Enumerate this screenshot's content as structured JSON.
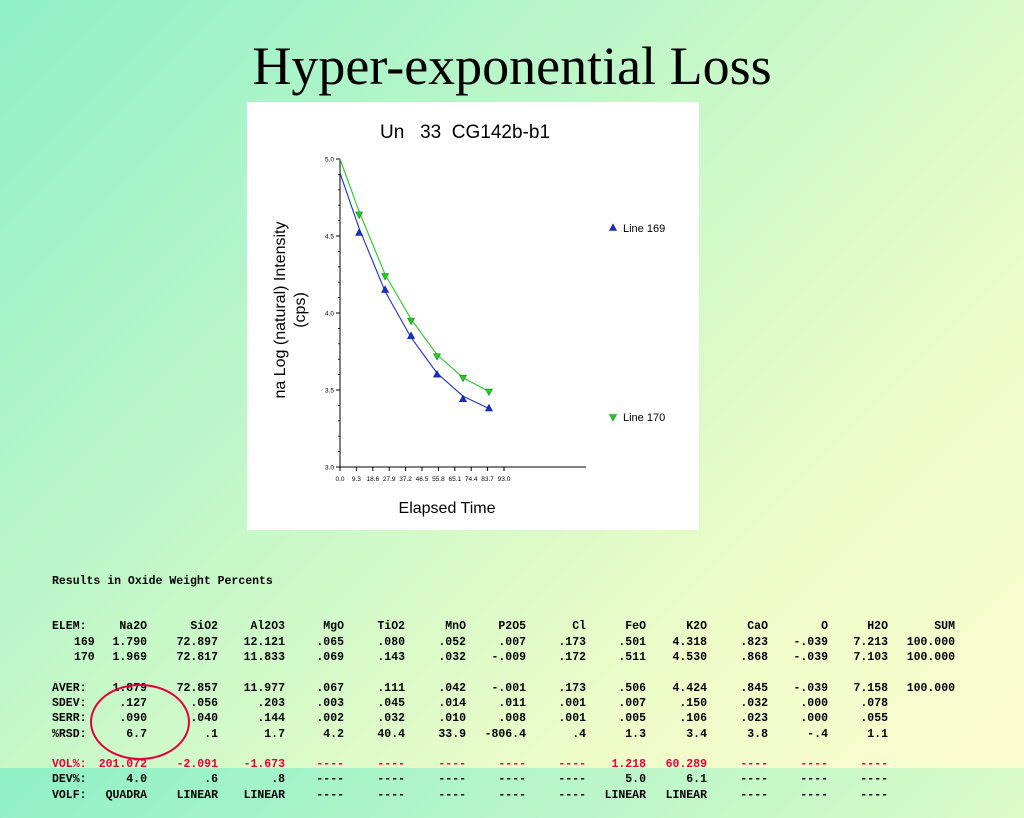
{
  "slide": {
    "title": "Hyper-exponential Loss"
  },
  "chart_data": {
    "type": "scatter",
    "title": "Un   33  CG142b-b1",
    "xlabel": "Elapsed Time",
    "ylabel_line1": "na Log (natural) Intensity",
    "ylabel_line2": "(cps)",
    "xlim": [
      0,
      93
    ],
    "ylim": [
      3.0,
      5.0
    ],
    "x_ticks": [
      "0.0",
      "9.3",
      "18.6",
      "27.9",
      "37.2",
      "46.5",
      "55.8",
      "65.1",
      "74.4",
      "83.7",
      "93.0"
    ],
    "y_ticks": [
      "3.0",
      "3.5",
      "4.0",
      "4.5",
      "5.0"
    ],
    "series": [
      {
        "name": "Line 169",
        "color": "#1a2fd0",
        "marker": "triangle-up",
        "points": [
          [
            7,
            4.52
          ],
          [
            16.5,
            4.15
          ],
          [
            26,
            3.85
          ],
          [
            35.5,
            3.6
          ],
          [
            45,
            3.44
          ],
          [
            54.5,
            3.38
          ]
        ],
        "fit": [
          [
            0,
            4.91
          ],
          [
            7,
            4.55
          ],
          [
            16.5,
            4.14
          ],
          [
            26,
            3.84
          ],
          [
            35.5,
            3.61
          ],
          [
            45,
            3.46
          ],
          [
            54.5,
            3.38
          ]
        ]
      },
      {
        "name": "Line 170",
        "color": "#22cc22",
        "marker": "triangle-down",
        "points": [
          [
            7,
            4.64
          ],
          [
            16.5,
            4.24
          ],
          [
            26,
            3.95
          ],
          [
            35.5,
            3.72
          ],
          [
            45,
            3.58
          ],
          [
            54.5,
            3.49
          ]
        ],
        "fit": [
          [
            0,
            5.0
          ],
          [
            7,
            4.66
          ],
          [
            16.5,
            4.25
          ],
          [
            26,
            3.96
          ],
          [
            35.5,
            3.73
          ],
          [
            45,
            3.58
          ],
          [
            54.5,
            3.49
          ]
        ]
      }
    ]
  },
  "results": {
    "heading": "Results in Oxide Weight Percents",
    "columns": [
      "ELEM:",
      "Na2O",
      "SiO2",
      "Al2O3",
      "MgO",
      "TiO2",
      "MnO",
      "P2O5",
      "Cl",
      "FeO",
      "K2O",
      "CaO",
      "O",
      "H2O",
      "SUM"
    ],
    "rows": [
      {
        "label": "169",
        "values": [
          "1.790",
          "72.897",
          "12.121",
          ".065",
          ".080",
          ".052",
          ".007",
          ".173",
          ".501",
          "4.318",
          ".823",
          "-.039",
          "7.213",
          "100.000"
        ],
        "style": ""
      },
      {
        "label": "170",
        "values": [
          "1.969",
          "72.817",
          "11.833",
          ".069",
          ".143",
          ".032",
          "-.009",
          ".172",
          ".511",
          "4.530",
          ".868",
          "-.039",
          "7.103",
          "100.000"
        ],
        "style": ""
      },
      {
        "label": "",
        "values": [
          "",
          "",
          "",
          "",
          "",
          "",
          "",
          "",
          "",
          "",
          "",
          "",
          "",
          ""
        ],
        "style": "blank"
      },
      {
        "label": "AVER:",
        "values": [
          "1.879",
          "72.857",
          "11.977",
          ".067",
          ".111",
          ".042",
          "-.001",
          ".173",
          ".506",
          "4.424",
          ".845",
          "-.039",
          "7.158",
          "100.000"
        ],
        "style": ""
      },
      {
        "label": "SDEV:",
        "values": [
          ".127",
          ".056",
          ".203",
          ".003",
          ".045",
          ".014",
          ".011",
          ".001",
          ".007",
          ".150",
          ".032",
          ".000",
          ".078",
          ""
        ],
        "style": ""
      },
      {
        "label": "SERR:",
        "values": [
          ".090",
          ".040",
          ".144",
          ".002",
          ".032",
          ".010",
          ".008",
          ".001",
          ".005",
          ".106",
          ".023",
          ".000",
          ".055",
          ""
        ],
        "style": ""
      },
      {
        "label": "%RSD:",
        "values": [
          "6.7",
          ".1",
          "1.7",
          "4.2",
          "40.4",
          "33.9",
          "-806.4",
          ".4",
          "1.3",
          "3.4",
          "3.8",
          "-.4",
          "1.1",
          ""
        ],
        "style": ""
      },
      {
        "label": "",
        "values": [
          "",
          "",
          "",
          "",
          "",
          "",
          "",
          "",
          "",
          "",
          "",
          "",
          "",
          ""
        ],
        "style": "blank"
      },
      {
        "label": "VOL%:",
        "values": [
          "201.072",
          "-2.091",
          "-1.673",
          "----",
          "----",
          "----",
          "----",
          "----",
          "1.218",
          "60.289",
          "----",
          "----",
          "----",
          ""
        ],
        "style": "red"
      },
      {
        "label": "DEV%:",
        "values": [
          "4.0",
          ".6",
          ".8",
          "----",
          "----",
          "----",
          "----",
          "----",
          "5.0",
          "6.1",
          "----",
          "----",
          "----",
          ""
        ],
        "style": ""
      },
      {
        "label": "VOLF:",
        "values": [
          "QUADRA",
          "LINEAR",
          "LINEAR",
          "----",
          "----",
          "----",
          "----",
          "----",
          "LINEAR",
          "LINEAR",
          "----",
          "----",
          "----",
          ""
        ],
        "style": ""
      }
    ]
  }
}
